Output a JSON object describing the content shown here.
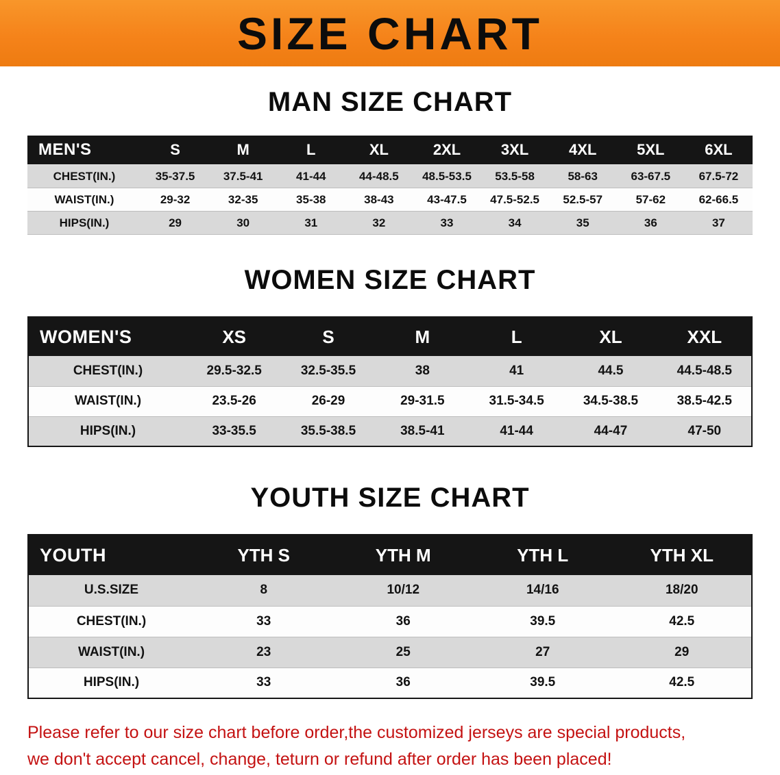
{
  "banner": {
    "title": "SIZE CHART",
    "bg_color": "#f5831a"
  },
  "sections": [
    {
      "heading": "MAN SIZE CHART",
      "table": {
        "header": [
          "MEN'S",
          "S",
          "M",
          "L",
          "XL",
          "2XL",
          "3XL",
          "4XL",
          "5XL",
          "6XL"
        ],
        "rows": [
          [
            "CHEST(IN.)",
            "35-37.5",
            "37.5-41",
            "41-44",
            "44-48.5",
            "48.5-53.5",
            "53.5-58",
            "58-63",
            "63-67.5",
            "67.5-72"
          ],
          [
            "WAIST(IN.)",
            "29-32",
            "32-35",
            "35-38",
            "38-43",
            "43-47.5",
            "47.5-52.5",
            "52.5-57",
            "57-62",
            "62-66.5"
          ],
          [
            "HIPS(IN.)",
            "29",
            "30",
            "31",
            "32",
            "33",
            "34",
            "35",
            "36",
            "37"
          ]
        ]
      }
    },
    {
      "heading": "WOMEN SIZE CHART",
      "table": {
        "header": [
          "WOMEN'S",
          "XS",
          "S",
          "M",
          "L",
          "XL",
          "XXL"
        ],
        "rows": [
          [
            "CHEST(IN.)",
            "29.5-32.5",
            "32.5-35.5",
            "38",
            "41",
            "44.5",
            "44.5-48.5"
          ],
          [
            "WAIST(IN.)",
            "23.5-26",
            "26-29",
            "29-31.5",
            "31.5-34.5",
            "34.5-38.5",
            "38.5-42.5"
          ],
          [
            "HIPS(IN.)",
            "33-35.5",
            "35.5-38.5",
            "38.5-41",
            "41-44",
            "44-47",
            "47-50"
          ]
        ]
      }
    },
    {
      "heading": "YOUTH SIZE CHART",
      "table": {
        "header": [
          "YOUTH",
          "YTH S",
          "YTH M",
          "YTH L",
          "YTH XL"
        ],
        "rows": [
          [
            "U.S.SIZE",
            "8",
            "10/12",
            "14/16",
            "18/20"
          ],
          [
            "CHEST(IN.)",
            "33",
            "36",
            "39.5",
            "42.5"
          ],
          [
            "WAIST(IN.)",
            "23",
            "25",
            "27",
            "29"
          ],
          [
            "HIPS(IN.)",
            "33",
            "36",
            "39.5",
            "42.5"
          ]
        ]
      }
    }
  ],
  "footer": {
    "line1": "Please refer to our size chart before order,the customized jerseys are special products,",
    "line2": "we don't accept cancel, change, teturn or refund after order has been placed!",
    "text_color": "#c41212"
  }
}
